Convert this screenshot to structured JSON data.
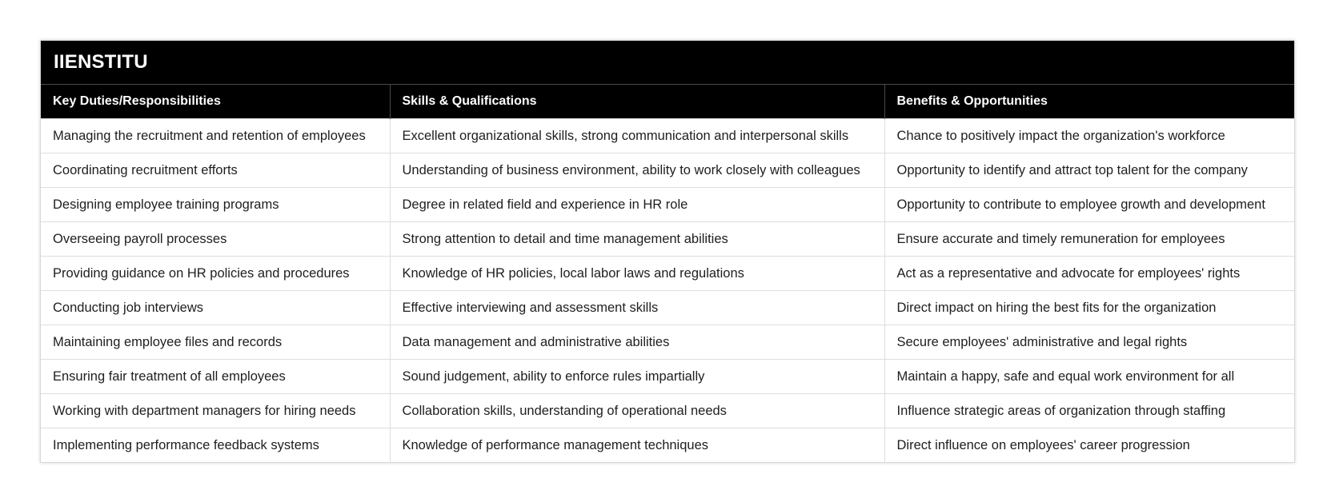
{
  "brand": {
    "title": "IIENSTITU"
  },
  "table": {
    "headers": [
      "Key Duties/Responsibilities",
      "Skills & Qualifications",
      "Benefits & Opportunities"
    ],
    "rows": [
      [
        "Managing the recruitment and retention of employees",
        "Excellent organizational skills, strong communication and interpersonal skills",
        "Chance to positively impact the organization's workforce"
      ],
      [
        "Coordinating recruitment efforts",
        "Understanding of business environment, ability to work closely with colleagues",
        "Opportunity to identify and attract top talent for the company"
      ],
      [
        "Designing employee training programs",
        "Degree in related field and experience in HR role",
        "Opportunity to contribute to employee growth and development"
      ],
      [
        "Overseeing payroll processes",
        "Strong attention to detail and time management abilities",
        "Ensure accurate and timely remuneration for employees"
      ],
      [
        "Providing guidance on HR policies and procedures",
        "Knowledge of HR policies, local labor laws and regulations",
        "Act as a representative and advocate for employees' rights"
      ],
      [
        "Conducting job interviews",
        "Effective interviewing and assessment skills",
        "Direct impact on hiring the best fits for the organization"
      ],
      [
        "Maintaining employee files and records",
        "Data management and administrative abilities",
        "Secure employees' administrative and legal rights"
      ],
      [
        "Ensuring fair treatment of all employees",
        "Sound judgement, ability to enforce rules impartially",
        "Maintain a happy, safe and equal work environment for all"
      ],
      [
        "Working with department managers for hiring needs",
        "Collaboration skills, understanding of operational needs",
        "Influence strategic areas of organization through staffing"
      ],
      [
        "Implementing performance feedback systems",
        "Knowledge of performance management techniques",
        "Direct influence on employees' career progression"
      ]
    ]
  },
  "colors": {
    "header_background": "#000000",
    "header_text": "#ffffff",
    "row_border": "#dedede"
  }
}
